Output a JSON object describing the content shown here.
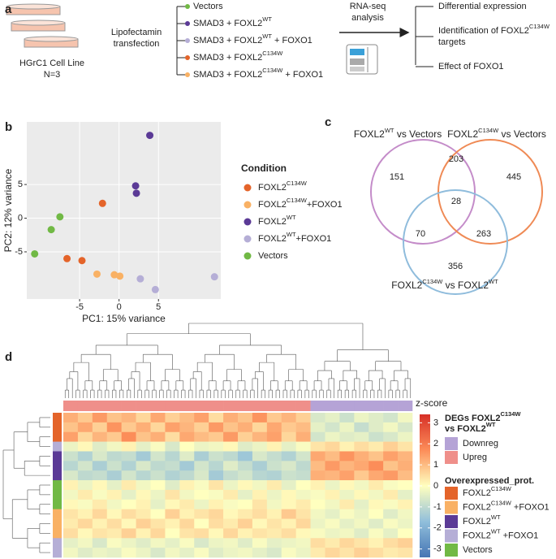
{
  "panel_a": {
    "label": "a",
    "cell_line": "HGrC1 Cell Line",
    "n": "N=3",
    "method": [
      "Lipofectamin",
      "transfection"
    ],
    "conditions": [
      {
        "parts": [
          "Vectors"
        ],
        "color": "#71b945"
      },
      {
        "parts": [
          "SMAD3 + FOXL2",
          "WT"
        ],
        "color": "#5b3a96"
      },
      {
        "parts": [
          "SMAD3 + FOXL2",
          "WT",
          " + FOXO1"
        ],
        "color": "#b5aed6"
      },
      {
        "parts": [
          "SMAD3 + FOXL2",
          "C134W"
        ],
        "color": "#e4642a"
      },
      {
        "parts": [
          "SMAD3 + FOXL2",
          "C134W",
          " + FOXO1"
        ],
        "color": "#f9b164"
      }
    ],
    "analysis": [
      "RNA-seq",
      "analysis"
    ],
    "outputs": [
      [
        [
          "Differential expression"
        ]
      ],
      [
        [
          "Identification of FOXL2",
          "C134W"
        ],
        [
          "targets"
        ]
      ],
      [
        [
          "Effect of FOXO1"
        ]
      ]
    ]
  },
  "chart_data": {
    "type": "scatter",
    "label": "b",
    "x_label": "PC1: 15% variance",
    "y_label": "PC2: 12% variance",
    "xlim": [
      -11.7,
      12.9
    ],
    "ylim": [
      -12,
      14.3
    ],
    "xticks": [
      -5,
      0,
      5
    ],
    "yticks": [
      -5,
      0,
      5
    ],
    "grid": true,
    "legend_title": "Condition",
    "series": [
      {
        "name": [
          "FOXL2",
          "C134W"
        ],
        "color": "#e4642a",
        "x": [
          -6.6,
          -4.7,
          -2.1
        ],
        "y": [
          -6.0,
          -6.3,
          2.2
        ]
      },
      {
        "name": [
          "FOXL2",
          "C134W",
          "+FOXO1"
        ],
        "color": "#f9b164",
        "x": [
          -2.8,
          -0.6,
          0.1
        ],
        "y": [
          -8.3,
          -8.4,
          -8.6
        ]
      },
      {
        "name": [
          "FOXL2",
          "WT"
        ],
        "color": "#5b3a96",
        "x": [
          2.1,
          2.2,
          3.9
        ],
        "y": [
          4.8,
          3.7,
          12.3
        ]
      },
      {
        "name": [
          "FOXL2",
          "WT",
          "+FOXO1"
        ],
        "color": "#b5aed6",
        "x": [
          2.7,
          4.6,
          12.1
        ],
        "y": [
          -9.0,
          -10.6,
          -8.7
        ]
      },
      {
        "name": [
          "Vectors"
        ],
        "color": "#71b945",
        "x": [
          -10.7,
          -8.6,
          -7.5
        ],
        "y": [
          -5.3,
          -1.7,
          0.2
        ]
      }
    ]
  },
  "panel_c": {
    "label": "c",
    "sets": [
      {
        "title": [
          "FOXL2",
          "WT",
          " vs Vectors"
        ],
        "color": "#c48cc9"
      },
      {
        "title": [
          "FOXL2",
          "C134W",
          " vs Vectors"
        ],
        "color": "#ef8a55"
      },
      {
        "title": [
          "FOXL2",
          "C134W",
          " vs FOXL2",
          "WT"
        ],
        "color": "#8fbcdc"
      }
    ],
    "counts": {
      "a_only": 151,
      "a_b": 203,
      "b_only": 445,
      "a_b_c": 28,
      "a_c": 70,
      "b_c": 263,
      "c_only": 356
    }
  },
  "panel_d": {
    "label": "d",
    "colorbar_title": "z-score",
    "zlim": [
      -3.4,
      3.4
    ],
    "zticks": [
      3,
      2,
      1,
      0,
      -1,
      -2,
      -3
    ],
    "colors": [
      "#4575b4",
      "#91bfdb",
      "#ffffbf",
      "#fc8d59",
      "#d73027"
    ],
    "deg_title": [
      [
        "DEGs FOXL2",
        "C134W"
      ],
      [
        "vs FOXL2",
        "WT"
      ]
    ],
    "deg_groups": [
      {
        "name": [
          "Downreg"
        ],
        "color": "#b5a3d6"
      },
      {
        "name": [
          "Upreg"
        ],
        "color": "#ef8f8a"
      }
    ],
    "prot_title": "Overexpressed_prot.",
    "prot_groups": [
      {
        "name": [
          "FOXL2",
          "C134W"
        ],
        "color": "#e4642a"
      },
      {
        "name": [
          "FOXL2",
          "C134W",
          " +FOXO1"
        ],
        "color": "#f9b164"
      },
      {
        "name": [
          "FOXL2",
          "WT"
        ],
        "color": "#5b3a96"
      },
      {
        "name": [
          "FOXL2",
          "WT",
          " +FOXO1"
        ],
        "color": "#b5aed6"
      },
      {
        "name": [
          "Vectors"
        ],
        "color": "#71b945"
      }
    ],
    "col_groups": [
      1,
      1,
      1,
      1,
      1,
      1,
      1,
      1,
      1,
      1,
      1,
      1,
      1,
      1,
      1,
      1,
      1,
      0,
      0,
      0,
      0,
      0,
      0,
      0
    ],
    "row_groups": [
      0,
      0,
      0,
      3,
      2,
      2,
      2,
      4,
      4,
      4,
      1,
      1,
      1,
      3,
      3
    ],
    "values": [
      [
        1.2,
        0.8,
        1.5,
        0.9,
        1.1,
        0.6,
        1.3,
        0.7,
        1.0,
        1.4,
        0.5,
        1.2,
        0.9,
        1.6,
        0.8,
        1.1,
        0.7,
        -0.6,
        -0.4,
        -0.8,
        -0.3,
        -0.5,
        -0.7,
        -0.2
      ],
      [
        0.9,
        1.3,
        0.7,
        1.6,
        0.8,
        1.2,
        0.6,
        1.4,
        1.1,
        0.7,
        1.5,
        0.9,
        1.2,
        0.6,
        1.3,
        0.8,
        1.0,
        -0.4,
        -0.7,
        -0.3,
        -0.9,
        -0.5,
        -0.2,
        -0.6
      ],
      [
        1.4,
        0.6,
        1.1,
        0.8,
        1.7,
        0.9,
        1.2,
        0.5,
        1.3,
        1.0,
        0.8,
        1.5,
        0.7,
        1.1,
        1.4,
        0.6,
        1.2,
        -0.7,
        -0.3,
        -0.5,
        -0.4,
        -0.8,
        -0.6,
        -0.3
      ],
      [
        -0.3,
        0.1,
        -0.5,
        -0.2,
        0.2,
        -0.4,
        -0.1,
        -0.6,
        0.0,
        -0.3,
        -0.2,
        0.1,
        -0.5,
        -0.3,
        0.2,
        -0.4,
        -0.1,
        0.4,
        0.6,
        0.2,
        0.5,
        0.3,
        0.7,
        0.4
      ],
      [
        -0.8,
        -1.2,
        -0.6,
        -1.0,
        -0.9,
        -1.4,
        -0.7,
        -1.1,
        -0.5,
        -1.3,
        -0.8,
        -1.0,
        -1.5,
        -0.6,
        -0.9,
        -1.2,
        -0.7,
        1.3,
        1.0,
        1.6,
        1.2,
        0.9,
        1.4,
        1.1
      ],
      [
        -1.1,
        -0.7,
        -1.3,
        -0.8,
        -1.2,
        -0.6,
        -1.0,
        -0.9,
        -1.4,
        -0.7,
        -1.1,
        -0.5,
        -0.9,
        -1.3,
        -0.8,
        -0.6,
        -1.0,
        1.0,
        1.5,
        1.1,
        1.3,
        1.7,
        0.9,
        1.2
      ],
      [
        -0.6,
        -1.0,
        -0.9,
        -1.3,
        -0.7,
        -1.1,
        -0.8,
        -1.2,
        -1.0,
        -0.6,
        -1.4,
        -0.9,
        -0.7,
        -1.1,
        -1.2,
        -0.8,
        -0.9,
        1.2,
        1.1,
        1.4,
        0.8,
        1.3,
        1.5,
        1.0
      ],
      [
        0.2,
        -0.3,
        0.1,
        -0.4,
        0.3,
        -0.2,
        0.0,
        -0.5,
        0.2,
        -0.1,
        0.4,
        -0.3,
        0.1,
        -0.2,
        0.3,
        -0.4,
        0.0,
        0.2,
        -0.3,
        0.1,
        -0.2,
        0.3,
        -0.1,
        0.0
      ],
      [
        -0.2,
        0.3,
        -0.1,
        0.2,
        -0.4,
        0.1,
        -0.3,
        0.4,
        -0.2,
        0.0,
        -0.1,
        0.3,
        -0.4,
        0.2,
        -0.3,
        0.1,
        -0.2,
        -0.1,
        0.2,
        -0.3,
        0.1,
        -0.2,
        0.3,
        -0.4
      ],
      [
        0.1,
        -0.1,
        0.3,
        -0.2,
        0.0,
        0.2,
        -0.4,
        0.1,
        0.3,
        -0.3,
        0.2,
        -0.1,
        0.0,
        0.4,
        -0.2,
        0.1,
        0.3,
        0.0,
        -0.2,
        0.3,
        -0.4,
        0.1,
        -0.1,
        0.2
      ],
      [
        0.4,
        0.2,
        0.6,
        0.1,
        0.5,
        0.3,
        0.0,
        0.7,
        0.2,
        0.4,
        0.6,
        0.1,
        0.3,
        0.5,
        0.2,
        0.8,
        0.4,
        -0.2,
        -0.4,
        -0.1,
        -0.3,
        0.0,
        -0.5,
        -0.2
      ],
      [
        0.3,
        0.6,
        0.2,
        0.5,
        0.1,
        0.7,
        0.4,
        0.2,
        0.6,
        0.0,
        0.5,
        0.3,
        0.7,
        0.1,
        0.4,
        0.2,
        0.6,
        -0.3,
        -0.1,
        -0.4,
        -0.2,
        -0.5,
        -0.1,
        -0.3
      ],
      [
        0.5,
        0.1,
        0.4,
        0.3,
        0.7,
        0.2,
        0.6,
        0.0,
        0.4,
        0.5,
        0.1,
        0.6,
        0.2,
        0.4,
        0.3,
        0.5,
        0.1,
        -0.1,
        -0.3,
        -0.2,
        -0.5,
        -0.1,
        -0.4,
        0.0
      ],
      [
        -0.4,
        -0.2,
        -0.6,
        -0.1,
        -0.3,
        -0.5,
        -0.2,
        -0.4,
        -0.1,
        -0.6,
        -0.3,
        -0.2,
        -0.5,
        -0.1,
        -0.4,
        -0.3,
        -0.2,
        0.5,
        0.3,
        0.6,
        0.4,
        0.2,
        0.5,
        0.7
      ],
      [
        -0.2,
        -0.5,
        -0.3,
        -0.4,
        -0.1,
        -0.3,
        -0.6,
        -0.2,
        -0.4,
        -0.1,
        -0.5,
        -0.3,
        -0.2,
        -0.4,
        -0.6,
        -0.1,
        -0.3,
        0.3,
        0.6,
        0.4,
        0.7,
        0.5,
        0.3,
        0.4
      ]
    ]
  }
}
